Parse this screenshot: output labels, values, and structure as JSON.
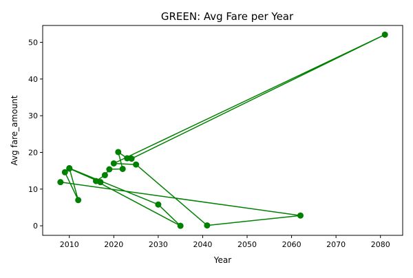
{
  "chart_data": {
    "type": "line",
    "title": "GREEN: Avg Fare per Year",
    "xlabel": "Year",
    "ylabel": "Avg fare_amount",
    "xlim": [
      2004,
      2085
    ],
    "ylim": [
      -2.6,
      54.6
    ],
    "xticks": [
      2010,
      2020,
      2030,
      2040,
      2050,
      2060,
      2070,
      2080
    ],
    "yticks": [
      0,
      10,
      20,
      30,
      40,
      50
    ],
    "grid": false,
    "legend": "none",
    "color": "#008000",
    "marker": "circle",
    "series": [
      {
        "points": [
          [
            2008,
            11.9
          ],
          [
            2062,
            2.8
          ],
          [
            2041,
            0.1
          ],
          [
            2025,
            16.7
          ],
          [
            2020,
            17.0
          ],
          [
            2081,
            52.1
          ],
          [
            2024,
            18.3
          ],
          [
            2023,
            18.4
          ],
          [
            2021,
            20.1
          ],
          [
            2022,
            15.5
          ],
          [
            2019,
            15.4
          ],
          [
            2018,
            13.8
          ],
          [
            2016,
            12.2
          ],
          [
            2035,
            0.0
          ],
          [
            2030,
            5.8
          ],
          [
            2010,
            15.7
          ],
          [
            2012,
            7.0
          ],
          [
            2009,
            14.6
          ],
          [
            2010,
            15.6
          ],
          [
            2017,
            11.9
          ]
        ]
      }
    ]
  }
}
